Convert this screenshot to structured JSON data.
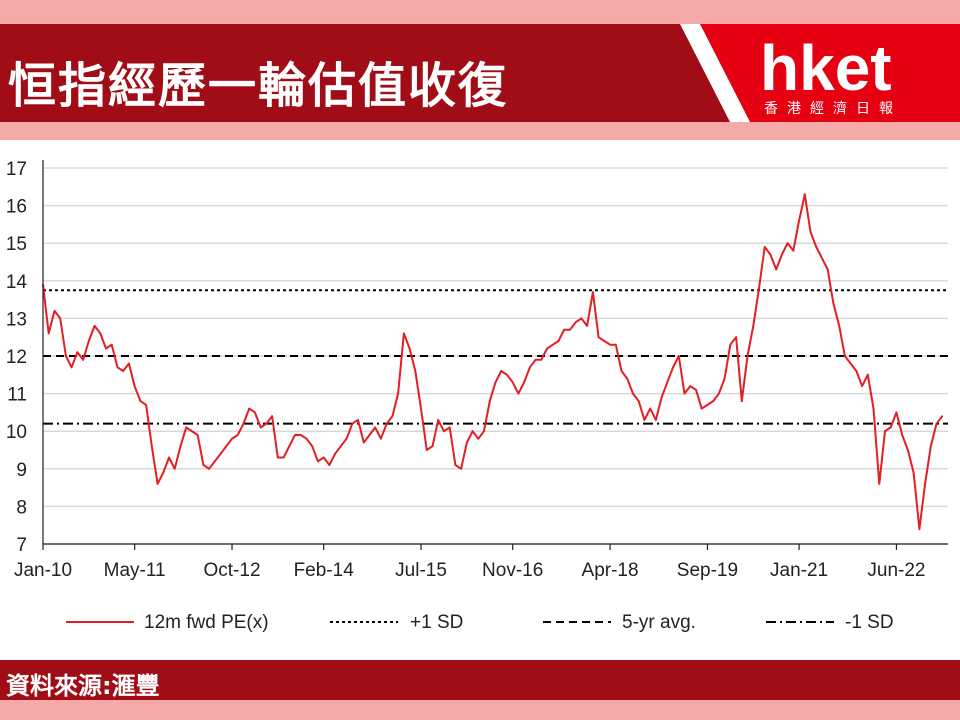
{
  "header": {
    "title": "恒指經歷一輪估值收復",
    "logo_text": "hket",
    "logo_subtitle": "香港經濟日報"
  },
  "footer": {
    "source": "資料來源:滙豐"
  },
  "colors": {
    "brand_red": "#a00d17",
    "band_pink": "#f6a9a9",
    "series_red": "#e31e24"
  },
  "chart_data": {
    "type": "line",
    "title": "",
    "xlabel": "",
    "ylabel": "",
    "ylim": [
      7,
      17
    ],
    "yticks": [
      7,
      8,
      9,
      10,
      11,
      12,
      13,
      14,
      15,
      16,
      17
    ],
    "xlim": [
      "2010-01",
      "2023-03"
    ],
    "xticks": [
      "Jan-10",
      "May-11",
      "Oct-12",
      "Feb-14",
      "Jul-15",
      "Nov-16",
      "Apr-18",
      "Sep-19",
      "Jan-21",
      "Jun-22"
    ],
    "grid": "horizontal",
    "legend_position": "bottom",
    "series": [
      {
        "name": "12m fwd PE(x)",
        "style": "solid",
        "points": [
          [
            "2010-01",
            13.9
          ],
          [
            "2010-02",
            12.6
          ],
          [
            "2010-03",
            13.2
          ],
          [
            "2010-04",
            13.0
          ],
          [
            "2010-05",
            12.0
          ],
          [
            "2010-06",
            11.7
          ],
          [
            "2010-07",
            12.1
          ],
          [
            "2010-08",
            11.9
          ],
          [
            "2010-09",
            12.4
          ],
          [
            "2010-10",
            12.8
          ],
          [
            "2010-11",
            12.6
          ],
          [
            "2010-12",
            12.2
          ],
          [
            "2011-01",
            12.3
          ],
          [
            "2011-02",
            11.7
          ],
          [
            "2011-03",
            11.6
          ],
          [
            "2011-04",
            11.8
          ],
          [
            "2011-05",
            11.2
          ],
          [
            "2011-06",
            10.8
          ],
          [
            "2011-07",
            10.7
          ],
          [
            "2011-08",
            9.6
          ],
          [
            "2011-09",
            8.6
          ],
          [
            "2011-10",
            8.9
          ],
          [
            "2011-11",
            9.3
          ],
          [
            "2011-12",
            9.0
          ],
          [
            "2012-01",
            9.6
          ],
          [
            "2012-02",
            10.1
          ],
          [
            "2012-03",
            10.0
          ],
          [
            "2012-04",
            9.9
          ],
          [
            "2012-05",
            9.1
          ],
          [
            "2012-06",
            9.0
          ],
          [
            "2012-07",
            9.2
          ],
          [
            "2012-08",
            9.4
          ],
          [
            "2012-09",
            9.6
          ],
          [
            "2012-10",
            9.8
          ],
          [
            "2012-11",
            9.9
          ],
          [
            "2012-12",
            10.2
          ],
          [
            "2013-01",
            10.6
          ],
          [
            "2013-02",
            10.5
          ],
          [
            "2013-03",
            10.1
          ],
          [
            "2013-04",
            10.2
          ],
          [
            "2013-05",
            10.4
          ],
          [
            "2013-06",
            9.3
          ],
          [
            "2013-07",
            9.3
          ],
          [
            "2013-08",
            9.6
          ],
          [
            "2013-09",
            9.9
          ],
          [
            "2013-10",
            9.9
          ],
          [
            "2013-11",
            9.8
          ],
          [
            "2013-12",
            9.6
          ],
          [
            "2014-01",
            9.2
          ],
          [
            "2014-02",
            9.3
          ],
          [
            "2014-03",
            9.1
          ],
          [
            "2014-04",
            9.4
          ],
          [
            "2014-05",
            9.6
          ],
          [
            "2014-06",
            9.8
          ],
          [
            "2014-07",
            10.2
          ],
          [
            "2014-08",
            10.3
          ],
          [
            "2014-09",
            9.7
          ],
          [
            "2014-10",
            9.9
          ],
          [
            "2014-11",
            10.1
          ],
          [
            "2014-12",
            9.8
          ],
          [
            "2015-01",
            10.2
          ],
          [
            "2015-02",
            10.4
          ],
          [
            "2015-03",
            11.0
          ],
          [
            "2015-04",
            12.6
          ],
          [
            "2015-05",
            12.2
          ],
          [
            "2015-06",
            11.6
          ],
          [
            "2015-07",
            10.6
          ],
          [
            "2015-08",
            9.5
          ],
          [
            "2015-09",
            9.6
          ],
          [
            "2015-10",
            10.3
          ],
          [
            "2015-11",
            10.0
          ],
          [
            "2015-12",
            10.1
          ],
          [
            "2016-01",
            9.1
          ],
          [
            "2016-02",
            9.0
          ],
          [
            "2016-03",
            9.7
          ],
          [
            "2016-04",
            10.0
          ],
          [
            "2016-05",
            9.8
          ],
          [
            "2016-06",
            10.0
          ],
          [
            "2016-07",
            10.8
          ],
          [
            "2016-08",
            11.3
          ],
          [
            "2016-09",
            11.6
          ],
          [
            "2016-10",
            11.5
          ],
          [
            "2016-11",
            11.3
          ],
          [
            "2016-12",
            11.0
          ],
          [
            "2017-01",
            11.3
          ],
          [
            "2017-02",
            11.7
          ],
          [
            "2017-03",
            11.9
          ],
          [
            "2017-04",
            11.9
          ],
          [
            "2017-05",
            12.2
          ],
          [
            "2017-06",
            12.3
          ],
          [
            "2017-07",
            12.4
          ],
          [
            "2017-08",
            12.7
          ],
          [
            "2017-09",
            12.7
          ],
          [
            "2017-10",
            12.9
          ],
          [
            "2017-11",
            13.0
          ],
          [
            "2017-12",
            12.8
          ],
          [
            "2018-01",
            13.7
          ],
          [
            "2018-02",
            12.5
          ],
          [
            "2018-03",
            12.4
          ],
          [
            "2018-04",
            12.3
          ],
          [
            "2018-05",
            12.3
          ],
          [
            "2018-06",
            11.6
          ],
          [
            "2018-07",
            11.4
          ],
          [
            "2018-08",
            11.0
          ],
          [
            "2018-09",
            10.8
          ],
          [
            "2018-10",
            10.3
          ],
          [
            "2018-11",
            10.6
          ],
          [
            "2018-12",
            10.3
          ],
          [
            "2019-01",
            10.9
          ],
          [
            "2019-02",
            11.3
          ],
          [
            "2019-03",
            11.7
          ],
          [
            "2019-04",
            12.0
          ],
          [
            "2019-05",
            11.0
          ],
          [
            "2019-06",
            11.2
          ],
          [
            "2019-07",
            11.1
          ],
          [
            "2019-08",
            10.6
          ],
          [
            "2019-09",
            10.7
          ],
          [
            "2019-10",
            10.8
          ],
          [
            "2019-11",
            11.0
          ],
          [
            "2019-12",
            11.4
          ],
          [
            "2020-01",
            12.3
          ],
          [
            "2020-02",
            12.5
          ],
          [
            "2020-03",
            10.8
          ],
          [
            "2020-04",
            12.0
          ],
          [
            "2020-05",
            12.8
          ],
          [
            "2020-06",
            13.8
          ],
          [
            "2020-07",
            14.9
          ],
          [
            "2020-08",
            14.7
          ],
          [
            "2020-09",
            14.3
          ],
          [
            "2020-10",
            14.7
          ],
          [
            "2020-11",
            15.0
          ],
          [
            "2020-12",
            14.8
          ],
          [
            "2021-01",
            15.6
          ],
          [
            "2021-02",
            16.3
          ],
          [
            "2021-03",
            15.3
          ],
          [
            "2021-04",
            14.9
          ],
          [
            "2021-05",
            14.6
          ],
          [
            "2021-06",
            14.3
          ],
          [
            "2021-07",
            13.4
          ],
          [
            "2021-08",
            12.8
          ],
          [
            "2021-09",
            12.0
          ],
          [
            "2021-10",
            11.8
          ],
          [
            "2021-11",
            11.6
          ],
          [
            "2021-12",
            11.2
          ],
          [
            "2022-01",
            11.5
          ],
          [
            "2022-02",
            10.6
          ],
          [
            "2022-03",
            8.6
          ],
          [
            "2022-04",
            10.0
          ],
          [
            "2022-05",
            10.1
          ],
          [
            "2022-06",
            10.5
          ],
          [
            "2022-07",
            9.9
          ],
          [
            "2022-08",
            9.5
          ],
          [
            "2022-09",
            8.9
          ],
          [
            "2022-10",
            7.4
          ],
          [
            "2022-11",
            8.6
          ],
          [
            "2022-12",
            9.6
          ],
          [
            "2023-01",
            10.2
          ],
          [
            "2023-02",
            10.4
          ]
        ]
      },
      {
        "name": "+1 SD",
        "style": "dotted",
        "value": 13.75
      },
      {
        "name": "5-yr avg.",
        "style": "dashed",
        "value": 12.0
      },
      {
        "name": "-1 SD",
        "style": "dashdot",
        "value": 10.2
      }
    ]
  }
}
